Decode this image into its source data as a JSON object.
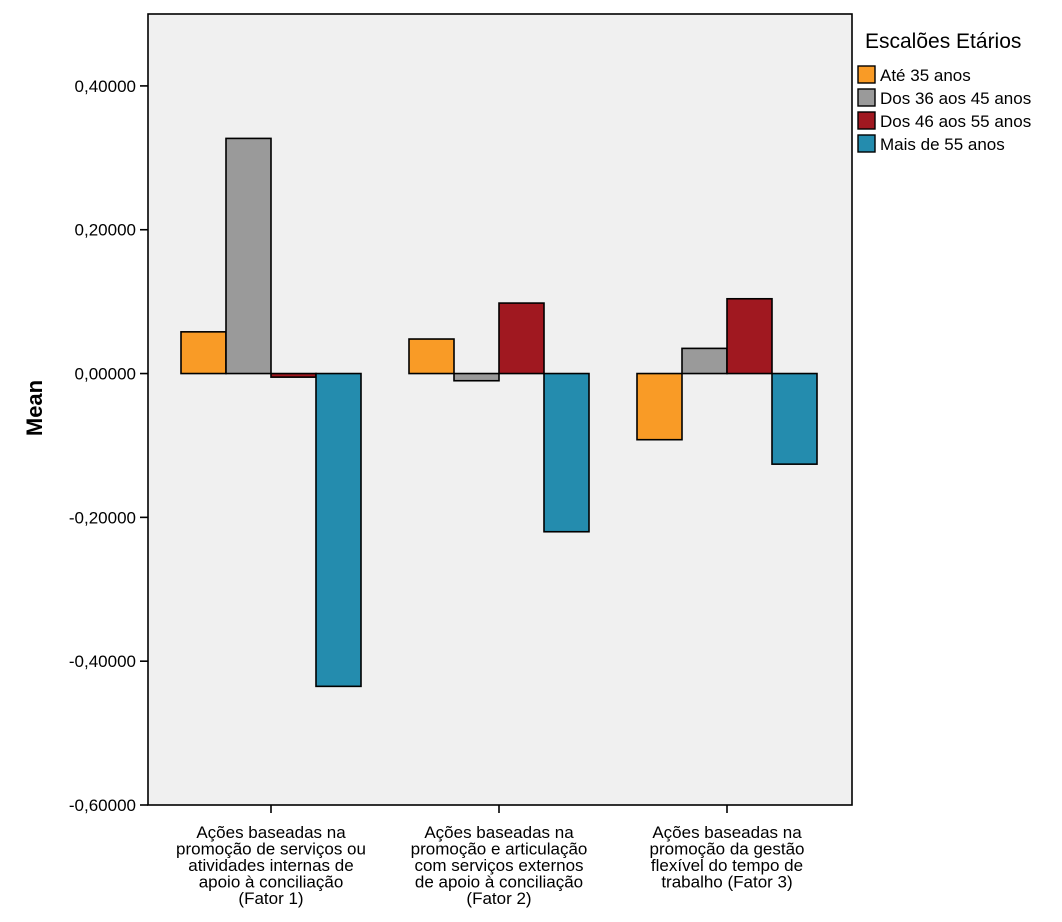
{
  "chart_data": {
    "type": "bar",
    "ylabel": "Mean",
    "xlabel": "",
    "ylim": [
      -0.6,
      0.5
    ],
    "yticks": [
      -0.6,
      -0.4,
      -0.2,
      0.0,
      0.2,
      0.4
    ],
    "ytick_labels": [
      "-0,60000",
      "-0,40000",
      "-0,20000",
      "0,00000",
      "0,20000",
      "0,40000"
    ],
    "grid": false,
    "legend_title": "Escalões Etários",
    "legend_position": "top-right",
    "categories": [
      [
        "Ações baseadas na",
        "promoção de serviços ou",
        "atividades internas de",
        "apoio à conciliação",
        "(Fator 1)"
      ],
      [
        "Ações baseadas na",
        "promoção e articulação",
        "com serviços externos",
        "de apoio à conciliação",
        "(Fator 2)"
      ],
      [
        "Ações baseadas na",
        "promoção da gestão",
        "flexível do tempo de",
        "trabalho (Fator 3)"
      ]
    ],
    "series": [
      {
        "name": "Até 35 anos",
        "color": "#F99B26",
        "values": [
          0.058,
          0.048,
          -0.092
        ]
      },
      {
        "name": "Dos 36 aos 45 anos",
        "color": "#9A9A9A",
        "values": [
          0.327,
          -0.01,
          0.035
        ]
      },
      {
        "name": "Dos 46 aos 55 anos",
        "color": "#A01820",
        "values": [
          -0.005,
          0.098,
          0.104
        ]
      },
      {
        "name": "Mais de 55 anos",
        "color": "#248CAE",
        "values": [
          -0.435,
          -0.22,
          -0.126
        ]
      }
    ],
    "plot_background": "#F0F0F0"
  }
}
